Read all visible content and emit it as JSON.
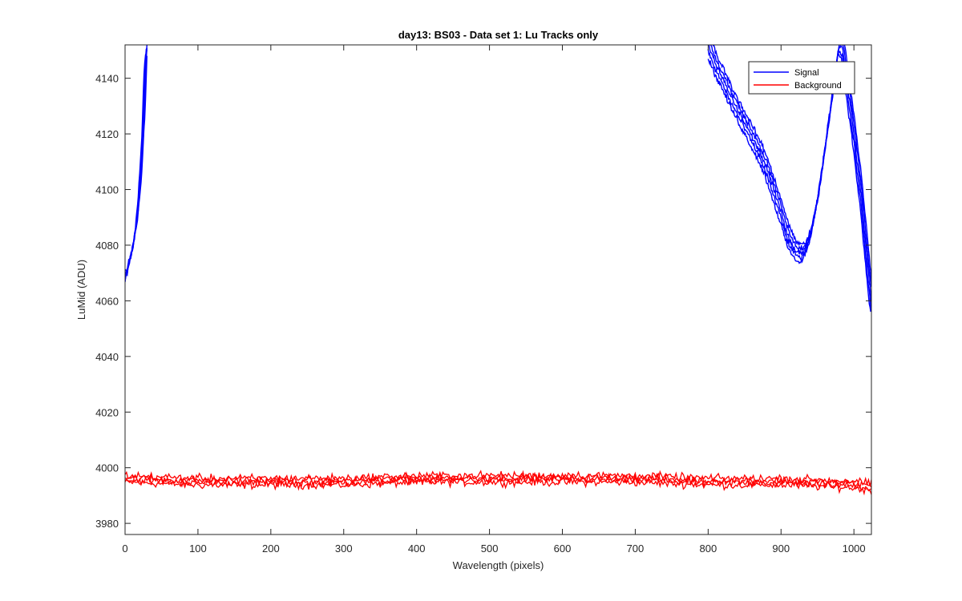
{
  "chart_data": {
    "type": "line",
    "title": "day13: BS03 - Data set 1: Lu Tracks only",
    "xlabel": "Wavelength (pixels)",
    "ylabel": "LuMid (ADU)",
    "xlim": [
      0,
      1024
    ],
    "ylim": [
      3976,
      4152
    ],
    "xticks": [
      0,
      100,
      200,
      300,
      400,
      500,
      600,
      700,
      800,
      900,
      1000
    ],
    "yticks": [
      3980,
      4000,
      4020,
      4040,
      4060,
      4080,
      4100,
      4120,
      4140
    ],
    "grid": false,
    "legend_position": "top-right",
    "series": [
      {
        "name": "Signal",
        "color": "#0000ff",
        "x": [
          0,
          5,
          10,
          15,
          20,
          25,
          28,
          30,
          800,
          810,
          820,
          830,
          840,
          850,
          860,
          870,
          880,
          890,
          900,
          910,
          920,
          930,
          940,
          950,
          960,
          970,
          975,
          980,
          985,
          990,
          1000,
          1010,
          1020,
          1024
        ],
        "y": [
          4068,
          4073,
          4079,
          4086,
          4100,
          4122,
          4145,
          4152,
          4152,
          4145,
          4140,
          4134,
          4129,
          4124,
          4119,
          4114,
          4108,
          4100,
          4092,
          4083,
          4078,
          4077,
          4083,
          4096,
          4114,
          4133,
          4144,
          4152,
          4150,
          4140,
          4120,
          4098,
          4070,
          4060
        ]
      },
      {
        "name": "Background",
        "color": "#ff0000",
        "x": [
          0,
          100,
          200,
          300,
          400,
          500,
          600,
          700,
          800,
          900,
          1000,
          1024
        ],
        "y": [
          3996,
          3995,
          3995,
          3995,
          3996,
          3996,
          3996,
          3996,
          3995,
          3995,
          3994,
          3993
        ]
      }
    ]
  }
}
